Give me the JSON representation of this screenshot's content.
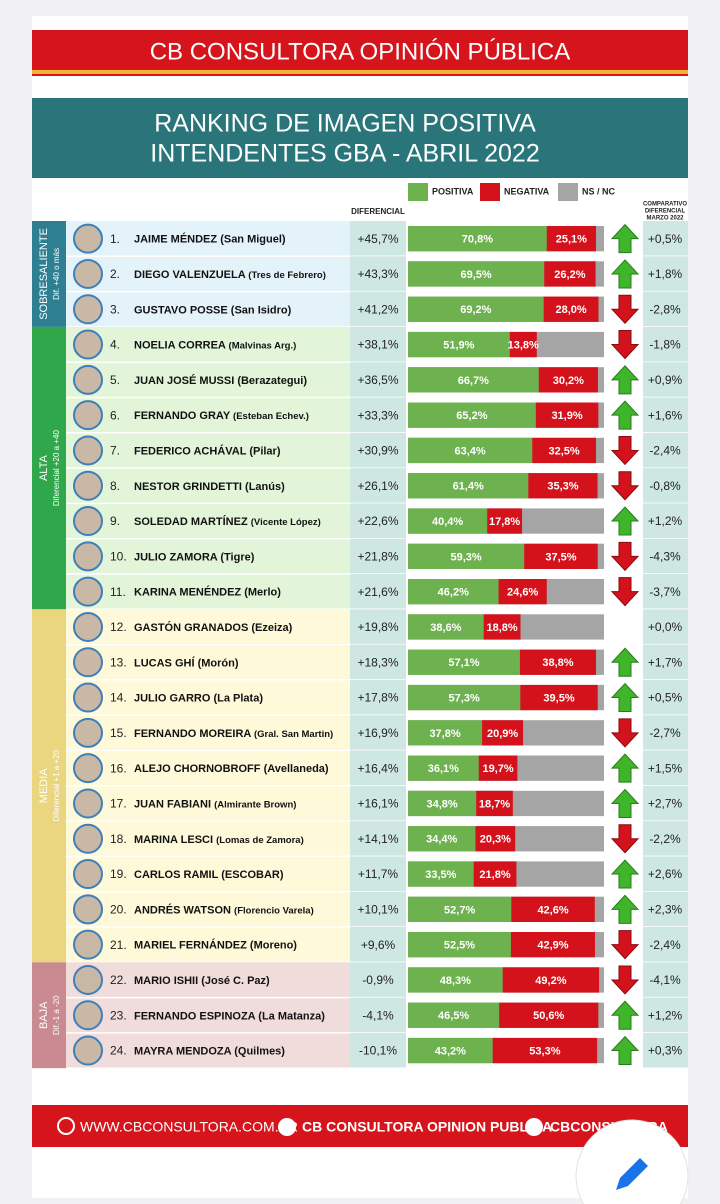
{
  "header": {
    "title": "CB CONSULTORA OPINIÓN PÚBLICA",
    "subtitle_lines": [
      "RANKING DE IMAGEN POSITIVA",
      "INTENDENTES GBA - ABRIL 2022"
    ]
  },
  "legend": {
    "positive": "POSITIVA",
    "negative": "NEGATIVA",
    "nsnc": "NS / NC",
    "colors": {
      "positive": "#6db24f",
      "negative": "#d3121c",
      "nsnc": "#a5a5a5"
    }
  },
  "columns": {
    "differential": "DIFERENCIAL",
    "comparative": [
      "COMPARATIVO",
      "DIFERENCIAL",
      "MARZO 2022"
    ]
  },
  "groups": [
    {
      "name": "SOBRESALIENTE",
      "note": "Dif. +40 o más",
      "color": "#2f7f93",
      "background": "#e4f2fa",
      "rows": [
        {
          "rank": "1.",
          "name": "JAIME MÉNDEZ",
          "district": "(San Miguel)",
          "differential": "+45,7%",
          "positive": 70.8,
          "positive_label": "70,8%",
          "negative": 25.1,
          "negative_label": "25,1%",
          "trend": "up",
          "comparative": "+0,5%"
        },
        {
          "rank": "2.",
          "name": "DIEGO VALENZUELA",
          "district": "(Tres de Febrero)",
          "differential": "+43,3%",
          "positive": 69.5,
          "positive_label": "69,5%",
          "negative": 26.2,
          "negative_label": "26,2%",
          "trend": "up",
          "comparative": "+1,8%"
        },
        {
          "rank": "3.",
          "name": "GUSTAVO POSSE",
          "district": "(San Isidro)",
          "differential": "+41,2%",
          "positive": 69.2,
          "positive_label": "69,2%",
          "negative": 28.0,
          "negative_label": "28,0%",
          "trend": "down",
          "comparative": "-2,8%"
        }
      ]
    },
    {
      "name": "ALTA",
      "note": "Diferencial +20 a +40",
      "color": "#2ea84a",
      "background": "#e2f5d9",
      "rows": [
        {
          "rank": "4.",
          "name": "NOELIA CORREA",
          "district": "(Malvinas Arg.)",
          "differential": "+38,1%",
          "positive": 51.9,
          "positive_label": "51,9%",
          "negative": 13.8,
          "negative_label": "13,8%",
          "trend": "down",
          "comparative": "-1,8%"
        },
        {
          "rank": "5.",
          "name": "JUAN JOSÉ MUSSI",
          "district": "(Berazategui)",
          "differential": "+36,5%",
          "positive": 66.7,
          "positive_label": "66,7%",
          "negative": 30.2,
          "negative_label": "30,2%",
          "trend": "up",
          "comparative": "+0,9%"
        },
        {
          "rank": "6.",
          "name": "FERNANDO GRAY",
          "district": "(Esteban Echev.)",
          "differential": "+33,3%",
          "positive": 65.2,
          "positive_label": "65,2%",
          "negative": 31.9,
          "negative_label": "31,9%",
          "trend": "up",
          "comparative": "+1,6%"
        },
        {
          "rank": "7.",
          "name": "FEDERICO ACHÁVAL",
          "district": "(Pilar)",
          "differential": "+30,9%",
          "positive": 63.4,
          "positive_label": "63,4%",
          "negative": 32.5,
          "negative_label": "32,5%",
          "trend": "down",
          "comparative": "-2,4%"
        },
        {
          "rank": "8.",
          "name": "NESTOR GRINDETTI",
          "district": "(Lanús)",
          "differential": "+26,1%",
          "positive": 61.4,
          "positive_label": "61,4%",
          "negative": 35.3,
          "negative_label": "35,3%",
          "trend": "down",
          "comparative": "-0,8%"
        },
        {
          "rank": "9.",
          "name": "SOLEDAD MARTÍNEZ",
          "district": "(Vicente López)",
          "differential": "+22,6%",
          "positive": 40.4,
          "positive_label": "40,4%",
          "negative": 17.8,
          "negative_label": "17,8%",
          "trend": "up",
          "comparative": "+1,2%"
        },
        {
          "rank": "10.",
          "name": "JULIO ZAMORA",
          "district": "(Tigre)",
          "differential": "+21,8%",
          "positive": 59.3,
          "positive_label": "59,3%",
          "negative": 37.5,
          "negative_label": "37,5%",
          "trend": "down",
          "comparative": "-4,3%"
        },
        {
          "rank": "11.",
          "name": "KARINA MENÉNDEZ",
          "district": "(Merlo)",
          "differential": "+21,6%",
          "positive": 46.2,
          "positive_label": "46,2%",
          "negative": 24.6,
          "negative_label": "24,6%",
          "trend": "down",
          "comparative": "-3,7%"
        }
      ]
    },
    {
      "name": "MEDIA",
      "note": "Diferencial +1 a +20",
      "color": "#e9d67f",
      "background": "#fdf9d9",
      "rows": [
        {
          "rank": "12.",
          "name": "GASTÓN GRANADOS",
          "district": "(Ezeiza)",
          "differential": "+19,8%",
          "positive": 38.6,
          "positive_label": "38,6%",
          "negative": 18.8,
          "negative_label": "18,8%",
          "comparative": "+0,0%"
        },
        {
          "rank": "13.",
          "name": "LUCAS GHÍ",
          "district": "(Morón)",
          "differential": "+18,3%",
          "positive": 57.1,
          "positive_label": "57,1%",
          "negative": 38.8,
          "negative_label": "38,8%",
          "trend": "up",
          "comparative": "+1,7%"
        },
        {
          "rank": "14.",
          "name": "JULIO GARRO",
          "district": "(La Plata)",
          "differential": "+17,8%",
          "positive": 57.3,
          "positive_label": "57,3%",
          "negative": 39.5,
          "negative_label": "39,5%",
          "trend": "up",
          "comparative": "+0,5%"
        },
        {
          "rank": "15.",
          "name": "FERNANDO MOREIRA",
          "district": "(Gral. San Martin)",
          "differential": "+16,9%",
          "positive": 37.8,
          "positive_label": "37,8%",
          "negative": 20.9,
          "negative_label": "20,9%",
          "trend": "down",
          "comparative": "-2,7%"
        },
        {
          "rank": "16.",
          "name": "ALEJO CHORNOBROFF",
          "district": "(Avellaneda)",
          "differential": "+16,4%",
          "positive": 36.1,
          "positive_label": "36,1%",
          "negative": 19.7,
          "negative_label": "19,7%",
          "trend": "up",
          "comparative": "+1,5%"
        },
        {
          "rank": "17.",
          "name": "JUAN FABIANI",
          "district": "(Almirante Brown)",
          "differential": "+16,1%",
          "positive": 34.8,
          "positive_label": "34,8%",
          "negative": 18.7,
          "negative_label": "18,7%",
          "trend": "up",
          "comparative": "+2,7%"
        },
        {
          "rank": "18.",
          "name": "MARINA LESCI",
          "district": "(Lomas de Zamora)",
          "differential": "+14,1%",
          "positive": 34.4,
          "positive_label": "34,4%",
          "negative": 20.3,
          "negative_label": "20,3%",
          "trend": "down",
          "comparative": "-2,2%"
        },
        {
          "rank": "19.",
          "name": "CARLOS RAMIL",
          "district": "(ESCOBAR)",
          "differential": "+11,7%",
          "positive": 33.5,
          "positive_label": "33,5%",
          "negative": 21.8,
          "negative_label": "21,8%",
          "trend": "up",
          "comparative": "+2,6%"
        },
        {
          "rank": "20.",
          "name": "ANDRÉS WATSON",
          "district": "(Florencio Varela)",
          "differential": "+10,1%",
          "positive": 52.7,
          "positive_label": "52,7%",
          "negative": 42.6,
          "negative_label": "42,6%",
          "trend": "up",
          "comparative": "+2,3%"
        },
        {
          "rank": "21.",
          "name": "MARIEL FERNÁNDEZ",
          "district": "(Moreno)",
          "differential": "+9,6%",
          "positive": 52.5,
          "positive_label": "52,5%",
          "negative": 42.9,
          "negative_label": "42,9%",
          "trend": "down",
          "comparative": "-2,4%"
        }
      ]
    },
    {
      "name": "BAJA",
      "note": "Dif.-1 a -20",
      "color": "#c98a92",
      "background": "#f1dcdc",
      "rows": [
        {
          "rank": "22.",
          "name": "MARIO ISHII",
          "district": "(José C. Paz)",
          "differential": "-0,9%",
          "positive": 48.3,
          "positive_label": "48,3%",
          "negative": 49.2,
          "negative_label": "49,2%",
          "trend": "down",
          "comparative": "-4,1%"
        },
        {
          "rank": "23.",
          "name": "FERNANDO ESPINOZA",
          "district": "(La Matanza)",
          "differential": "-4,1%",
          "positive": 46.5,
          "positive_label": "46,5%",
          "negative": 50.6,
          "negative_label": "50,6%",
          "trend": "up",
          "comparative": "+1,2%"
        },
        {
          "rank": "24.",
          "name": "MAYRA MENDOZA",
          "district": "(Quilmes)",
          "differential": "-10,1%",
          "positive": 43.2,
          "positive_label": "43,2%",
          "negative": 53.3,
          "negative_label": "53,3%",
          "trend": "up",
          "comparative": "+0,3%"
        }
      ]
    }
  ],
  "footer": {
    "website": "WWW.CBCONSULTORA.COM.AR",
    "facebook": "CB CONSULTORA OPINION PUBLICA",
    "twitter": "CBCONSULTORA"
  }
}
